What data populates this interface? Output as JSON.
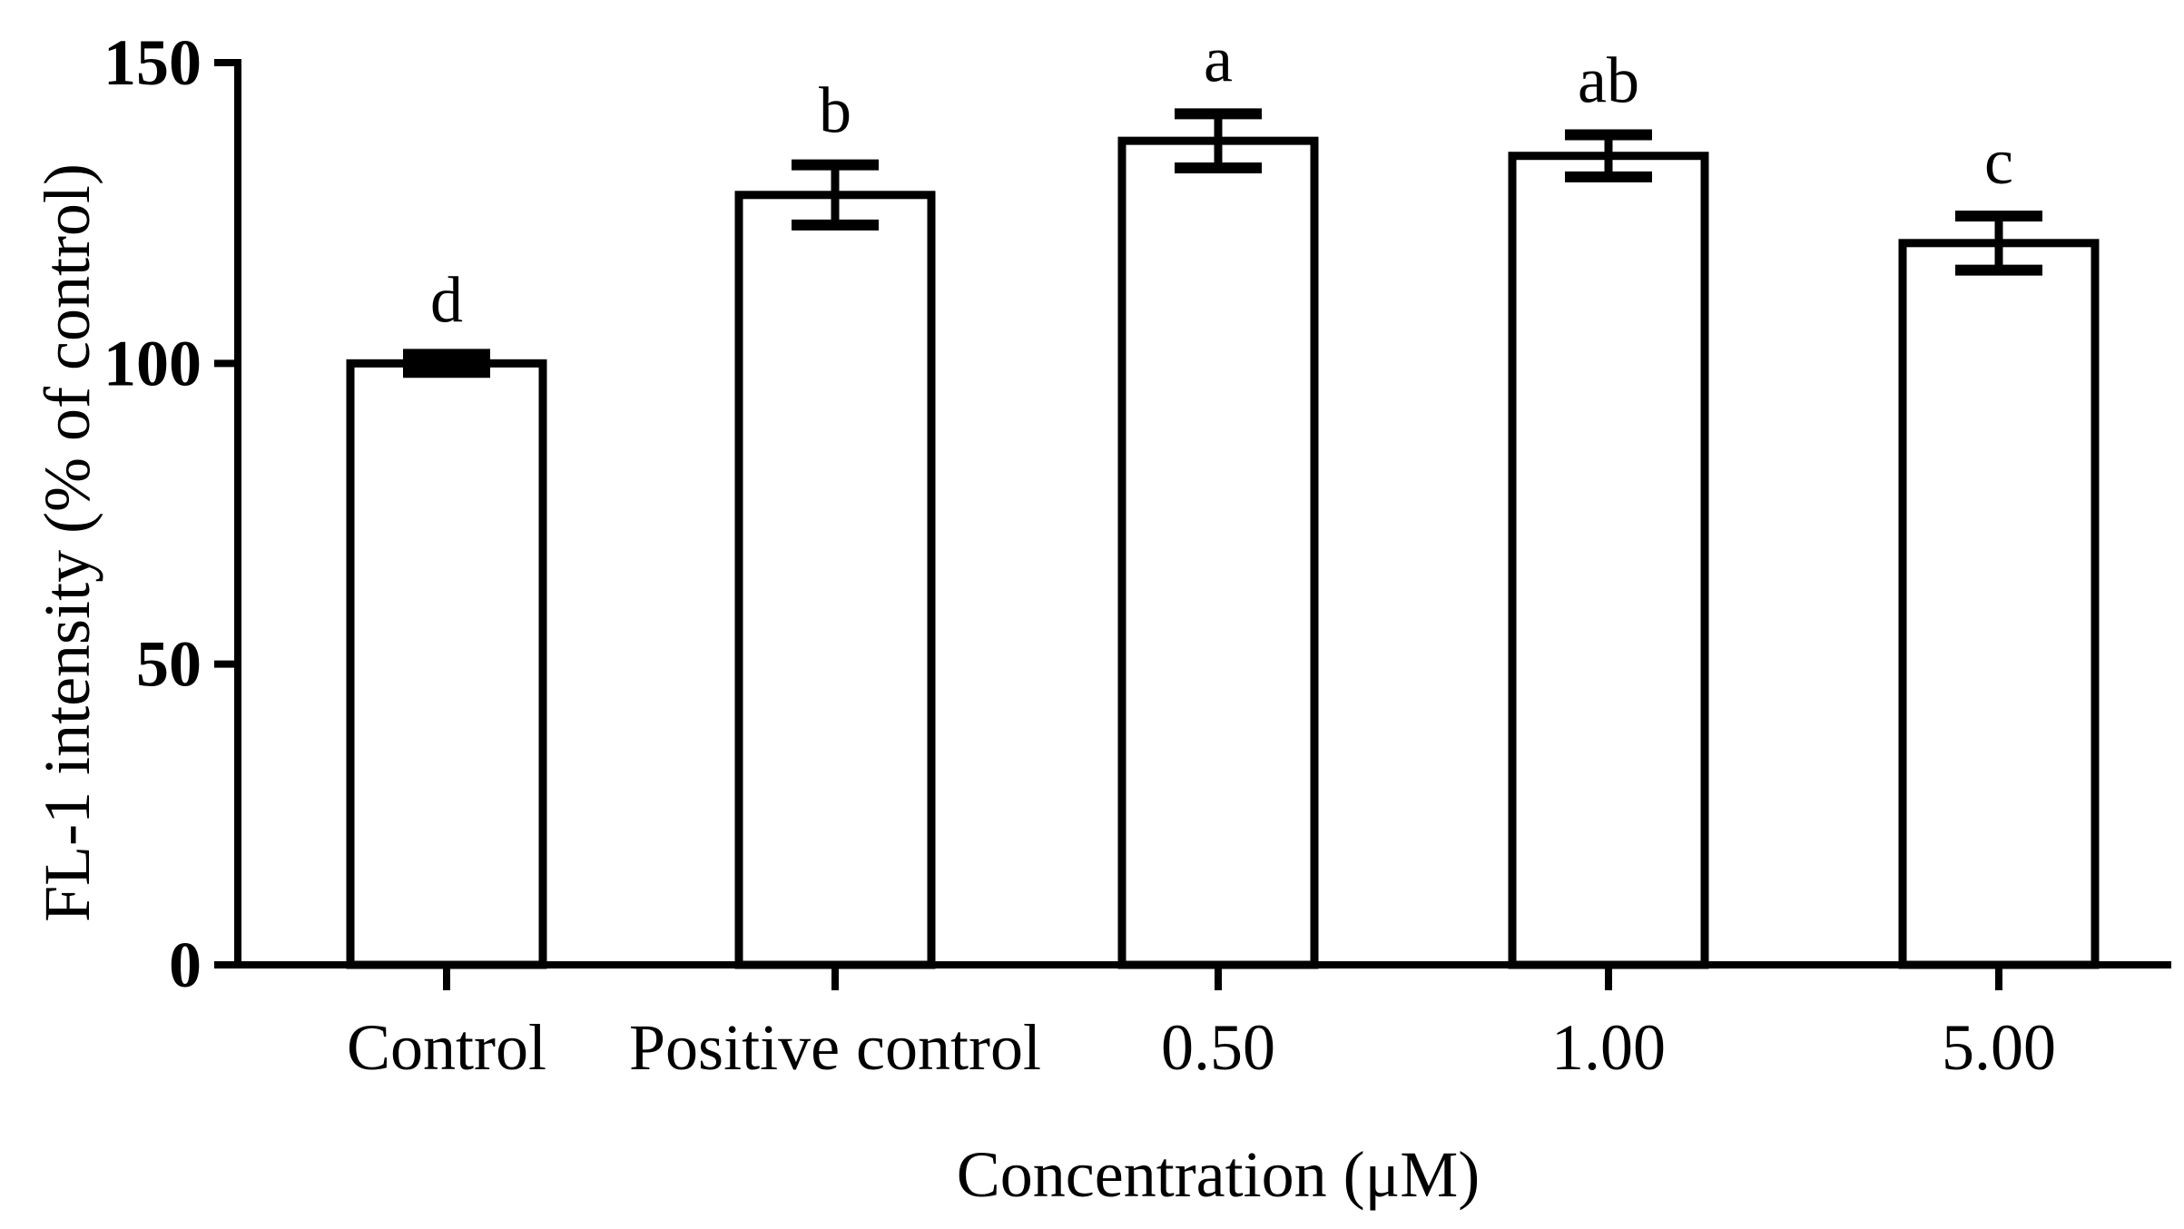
{
  "chart_data": {
    "type": "bar",
    "title": "",
    "xlabel": "Concentration (μM)",
    "ylabel": "FL-1 intensity (% of control)",
    "ylim": [
      0,
      150
    ],
    "yticks": [
      "0",
      "50",
      "100",
      "150"
    ],
    "categories": [
      "Control",
      "Positive control",
      "0.50",
      "1.00",
      "5.00"
    ],
    "values": [
      100,
      128,
      137,
      134.5,
      120
    ],
    "errors": [
      1.5,
      5,
      4.5,
      3.5,
      4.5
    ],
    "significance_labels": [
      "d",
      "b",
      "a",
      "ab",
      "c"
    ],
    "bar_fill": "#ffffff",
    "bar_stroke": "#000000"
  }
}
